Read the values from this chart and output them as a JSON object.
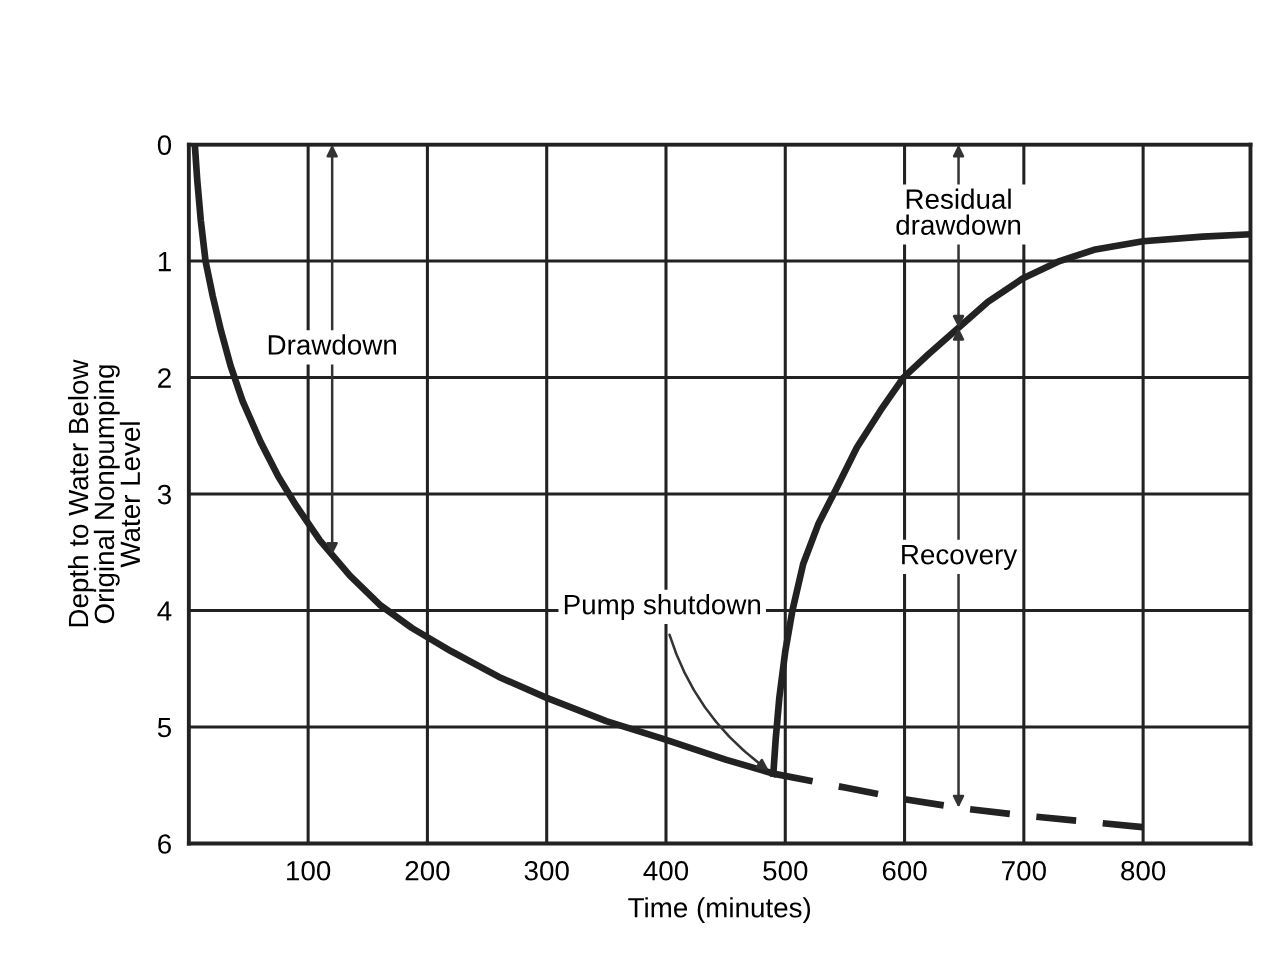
{
  "chart_data": {
    "type": "line",
    "xlabel": "Time (minutes)",
    "ylabel": "Depth to Water Below\nOriginal Nonpumping\nWater Level",
    "xlim": [
      0,
      890
    ],
    "ylim": [
      6,
      0
    ],
    "xticks": [
      100,
      200,
      300,
      400,
      500,
      600,
      700,
      800
    ],
    "yticks": [
      0,
      1,
      2,
      3,
      4,
      5,
      6
    ],
    "grid": true,
    "legend": false,
    "marker": "none",
    "series": [
      {
        "color": "#222222",
        "line_style": "solid",
        "x": [
          5,
          7,
          10,
          14,
          20,
          27,
          35,
          45,
          60,
          75,
          90,
          110,
          135,
          160,
          187,
          220,
          260,
          300,
          350,
          397,
          450,
          490
        ],
        "values": [
          0,
          0.3,
          0.65,
          1,
          1.3,
          1.6,
          1.9,
          2.2,
          2.55,
          2.85,
          3.1,
          3.4,
          3.7,
          3.95,
          4.15,
          4.35,
          4.57,
          4.75,
          4.95,
          5.1,
          5.28,
          5.4
        ]
      },
      {
        "color": "#222222",
        "line_style": "solid",
        "x": [
          490,
          492,
          495,
          500,
          506,
          515,
          528,
          543,
          560,
          580,
          599,
          620,
          640,
          670,
          699,
          730,
          760,
          800,
          850,
          890
        ],
        "values": [
          5.4,
          5.1,
          4.75,
          4.35,
          4.0,
          3.6,
          3.25,
          2.95,
          2.6,
          2.28,
          2.0,
          1.8,
          1.62,
          1.35,
          1.15,
          1.0,
          0.9,
          0.83,
          0.79,
          0.77
        ]
      },
      {
        "color": "#222222",
        "line_style": "dashed",
        "x": [
          490,
          550,
          600,
          650,
          700,
          750,
          800
        ],
        "values": [
          5.4,
          5.52,
          5.62,
          5.7,
          5.76,
          5.81,
          5.86
        ]
      }
    ],
    "annotations": [
      "Drawdown",
      "Residual\ndrawdown",
      "Recovery",
      {
        "text": "Pump shutdown",
        "x": 490,
        "y": 5.4
      }
    ]
  }
}
